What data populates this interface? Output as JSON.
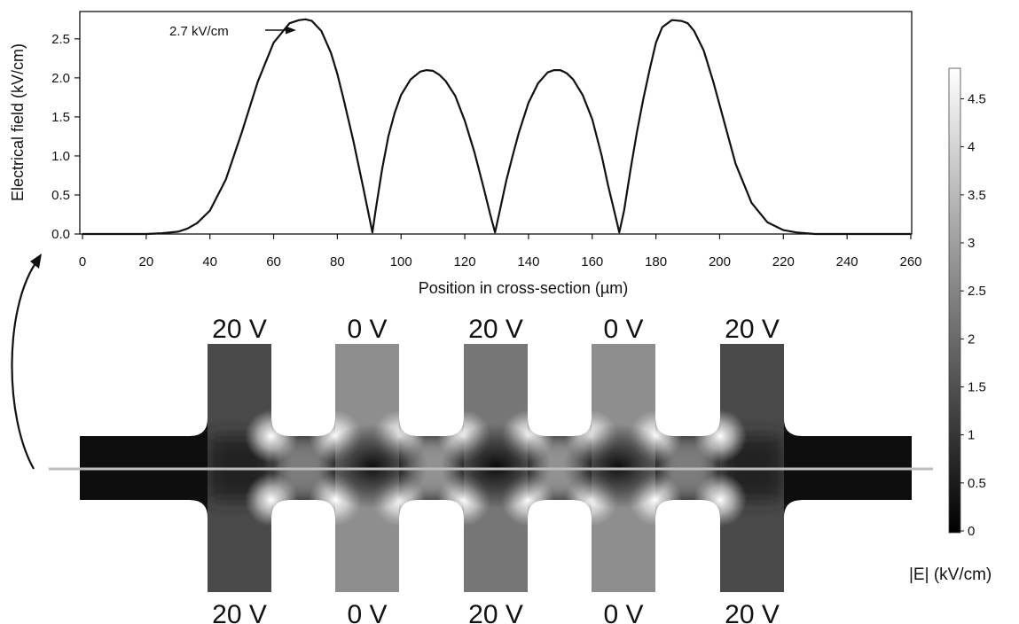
{
  "chart_data": [
    {
      "type": "line",
      "xlabel": "Position in cross-section (µm)",
      "ylabel": "Electrical field (kV/cm)",
      "xlim": [
        0,
        260
      ],
      "ylim": [
        0,
        2.85
      ],
      "xticks": [
        "0",
        "20",
        "40",
        "60",
        "80",
        "100",
        "120",
        "140",
        "160",
        "180",
        "200",
        "220",
        "240",
        "260"
      ],
      "yticks": [
        "0.0",
        "0.5",
        "1.0",
        "1.5",
        "2.0",
        "2.5"
      ],
      "grid": false,
      "annotation": "2.7 kV/cm",
      "series": [
        {
          "x": [
            0,
            10,
            20,
            25,
            30,
            33,
            36,
            40,
            45,
            50,
            55,
            60,
            65,
            68,
            70,
            72,
            75,
            78,
            80,
            82,
            85,
            88,
            90,
            91,
            92,
            94,
            96,
            98,
            100,
            103,
            106,
            108,
            110,
            112,
            114,
            117,
            120,
            123,
            126,
            128,
            129.5,
            131,
            133,
            135,
            137,
            140,
            143,
            146,
            148,
            150,
            152,
            154,
            157,
            160,
            163,
            165,
            167,
            168.5,
            170,
            172,
            174,
            176,
            178,
            180,
            182,
            185,
            188,
            190,
            192,
            195,
            198,
            200,
            205,
            210,
            215,
            220,
            224,
            227,
            230,
            235,
            240,
            250,
            260
          ],
          "y": [
            0,
            0,
            0,
            0.01,
            0.03,
            0.07,
            0.14,
            0.3,
            0.7,
            1.3,
            1.95,
            2.45,
            2.7,
            2.74,
            2.75,
            2.73,
            2.6,
            2.32,
            2.05,
            1.72,
            1.2,
            0.62,
            0.22,
            0.02,
            0.3,
            0.82,
            1.25,
            1.55,
            1.78,
            1.98,
            2.08,
            2.1,
            2.09,
            2.04,
            1.96,
            1.77,
            1.45,
            1.05,
            0.58,
            0.25,
            0.02,
            0.3,
            0.68,
            1.0,
            1.3,
            1.68,
            1.93,
            2.07,
            2.1,
            2.1,
            2.06,
            1.98,
            1.78,
            1.47,
            1.0,
            0.62,
            0.28,
            0.02,
            0.3,
            0.82,
            1.3,
            1.72,
            2.1,
            2.45,
            2.65,
            2.74,
            2.73,
            2.7,
            2.6,
            2.35,
            1.95,
            1.65,
            0.9,
            0.4,
            0.15,
            0.05,
            0.02,
            0.01,
            0,
            0,
            0,
            0,
            0
          ]
        }
      ]
    },
    {
      "type": "heatmap",
      "title": "",
      "colorbar_label": "|E| (kV/cm)",
      "colorbar_ticks": [
        "0",
        "0.5",
        "1",
        "1.5",
        "2",
        "2.5",
        "3",
        "3.5",
        "4",
        "4.5"
      ],
      "colorbar_range": [
        0,
        4.8
      ],
      "colormap": "grayscale (black = 0, white = max)",
      "electrodes_top": [
        "20 V",
        "0 V",
        "20 V",
        "0 V",
        "20 V"
      ],
      "electrodes_bottom": [
        "20 V",
        "0 V",
        "20 V",
        "0 V",
        "20 V"
      ],
      "electrode_field_kv_cm": [
        1.2,
        2.6,
        2.1,
        2.6,
        1.2
      ]
    }
  ],
  "colors": {
    "line": "#111111",
    "channel_dark": "#111111",
    "cut_line": "#bbbbbb"
  }
}
